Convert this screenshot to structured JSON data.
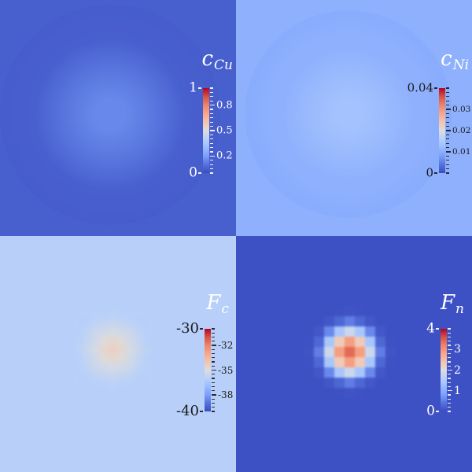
{
  "figure": {
    "description": "2x2 multi-panel scalar field visualization (concentration and free-energy fields) with coolwarm colorbars",
    "colormap": {
      "name": "coolwarm",
      "stops": [
        [
          0,
          "#3B4CC0"
        ],
        [
          0.1,
          "#5572DC"
        ],
        [
          0.2,
          "#7B9FF9"
        ],
        [
          0.3,
          "#9ABBFF"
        ],
        [
          0.4,
          "#B8D0F9"
        ],
        [
          0.5,
          "#DDDDDD"
        ],
        [
          0.6,
          "#F5C4AC"
        ],
        [
          0.7,
          "#F7A789"
        ],
        [
          0.8,
          "#EE8468"
        ],
        [
          0.9,
          "#D65244"
        ],
        [
          1,
          "#B40426"
        ]
      ]
    }
  },
  "chart_data": [
    {
      "type": "heatmap",
      "title": "c_Cu",
      "title_main": "c",
      "title_sub": "Cu",
      "title_color": "#FFFFFF",
      "text_color": "#FFFFFF",
      "colorbar": {
        "orientation": "vertical",
        "vmin": 0,
        "vmax": 1,
        "max_label": "1",
        "min_label": "0",
        "ticks": [
          {
            "value": 0.8,
            "label": "0.8"
          },
          {
            "value": 0.5,
            "label": "0.5"
          },
          {
            "value": 0.2,
            "label": "0.2"
          }
        ]
      },
      "field": {
        "kind": "smooth-blob",
        "background_value": 0.05,
        "peak_value": 0.15,
        "ring_value": 0.03,
        "center_frac": [
          0.467,
          0.487
        ]
      }
    },
    {
      "type": "heatmap",
      "title": "c_Ni",
      "title_main": "c",
      "title_sub": "Ni",
      "title_color": "#FFFFFF",
      "text_color": "#1A1A1A",
      "colorbar": {
        "orientation": "vertical",
        "vmin": 0,
        "vmax": 0.04,
        "max_label": "0.04",
        "min_label": "0",
        "ticks": [
          {
            "value": 0.03,
            "label": "0.03"
          },
          {
            "value": 0.02,
            "label": "0.02"
          },
          {
            "value": 0.01,
            "label": "0.01"
          }
        ]
      },
      "field": {
        "kind": "smooth-blob",
        "background_value": 0.0106,
        "peak_value": 0.0133,
        "ring_value": 0.009,
        "center_frac": [
          0.477,
          0.483
        ]
      }
    },
    {
      "type": "heatmap",
      "title": "F_c",
      "title_main": "F",
      "title_sub": "c",
      "title_color": "#FFFFFF",
      "text_color": "#1A1A1A",
      "colorbar": {
        "orientation": "vertical",
        "vmin": -40,
        "vmax": -30,
        "max_label": "-30",
        "min_label": "-40",
        "ticks": [
          {
            "value": -32,
            "label": "-32"
          },
          {
            "value": -35,
            "label": "-35"
          },
          {
            "value": -38,
            "label": "-38"
          }
        ]
      },
      "field": {
        "kind": "pixel-grid",
        "background_value": -36,
        "peak_value": -34.4,
        "center_frac": [
          0.477,
          0.483
        ],
        "values": [
          [
            -36,
            -36,
            -36,
            -36,
            -35.9,
            -36,
            -36,
            -36,
            -36
          ],
          [
            -36,
            -36,
            -35.8,
            -35.7,
            -35.6,
            -35.7,
            -35.8,
            -36,
            -36
          ],
          [
            -36,
            -35.8,
            -35.5,
            -35.35,
            -35.2,
            -35.35,
            -35.5,
            -35.8,
            -36
          ],
          [
            -36,
            -35.7,
            -35.35,
            -34.9,
            -34.7,
            -34.9,
            -35.35,
            -35.7,
            -36
          ],
          [
            -35.9,
            -35.6,
            -35.2,
            -34.7,
            -34.4,
            -34.7,
            -35.2,
            -35.6,
            -35.9
          ],
          [
            -36,
            -35.7,
            -35.35,
            -34.9,
            -34.7,
            -34.9,
            -35.35,
            -35.7,
            -36
          ],
          [
            -36,
            -35.8,
            -35.5,
            -35.35,
            -35.2,
            -35.35,
            -35.5,
            -35.8,
            -36
          ],
          [
            -36,
            -36,
            -35.8,
            -35.7,
            -35.6,
            -35.7,
            -35.8,
            -36,
            -36
          ],
          [
            -36,
            -36,
            -36,
            -36,
            -35.9,
            -36,
            -36,
            -36,
            -36
          ]
        ]
      }
    },
    {
      "type": "heatmap",
      "title": "F_n",
      "title_main": "F",
      "title_sub": "n",
      "title_color": "#FFFFFF",
      "text_color": "#FFFFFF",
      "colorbar": {
        "orientation": "vertical",
        "vmin": 0,
        "vmax": 4,
        "max_label": "4",
        "min_label": "0",
        "ticks": [
          {
            "value": 3,
            "label": "3"
          },
          {
            "value": 2,
            "label": "2"
          },
          {
            "value": 1,
            "label": "1"
          }
        ]
      },
      "field": {
        "kind": "pixel-grid",
        "background_value": 0.05,
        "peak_value": 3.4,
        "center_frac": [
          0.483,
          0.49
        ],
        "values": [
          [
            0.05,
            0.05,
            0.05,
            0.06,
            0.08,
            0.06,
            0.05,
            0.05,
            0.05
          ],
          [
            0.05,
            0.05,
            0.12,
            0.28,
            0.5,
            0.28,
            0.12,
            0.05,
            0.05
          ],
          [
            0.05,
            0.12,
            0.6,
            1.4,
            1.8,
            1.4,
            0.6,
            0.12,
            0.05
          ],
          [
            0.06,
            0.28,
            1.4,
            2.3,
            2.9,
            2.3,
            1.4,
            0.28,
            0.06
          ],
          [
            0.08,
            0.5,
            1.8,
            2.9,
            3.4,
            2.9,
            1.8,
            0.5,
            0.08
          ],
          [
            0.06,
            0.28,
            1.4,
            2.3,
            2.9,
            2.3,
            1.4,
            0.28,
            0.06
          ],
          [
            0.05,
            0.12,
            0.6,
            1.4,
            1.8,
            1.4,
            0.6,
            0.12,
            0.05
          ],
          [
            0.05,
            0.05,
            0.12,
            0.28,
            0.5,
            0.28,
            0.12,
            0.05,
            0.05
          ],
          [
            0.05,
            0.05,
            0.05,
            0.06,
            0.08,
            0.06,
            0.05,
            0.05,
            0.05
          ]
        ]
      }
    }
  ]
}
